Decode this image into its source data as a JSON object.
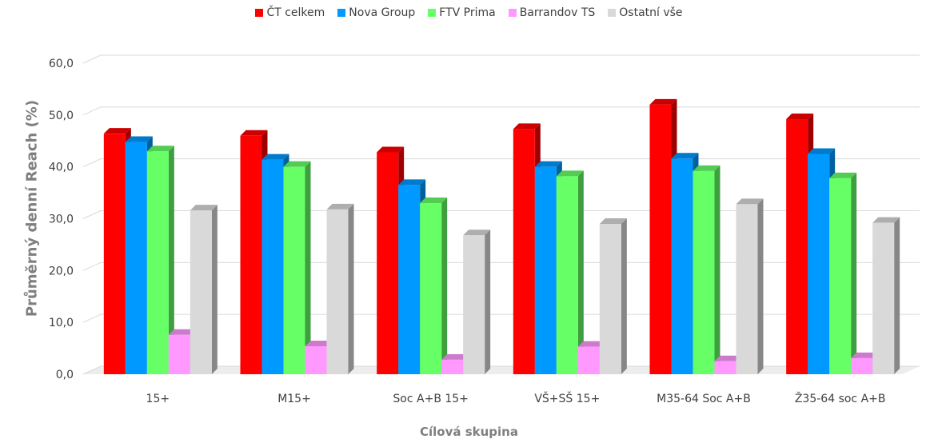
{
  "chart_data": {
    "type": "bar",
    "xlabel": "Cílová skupina",
    "ylabel": "Průměrný denní Reach (%)",
    "ylim": [
      0,
      60
    ],
    "yticks": [
      "0,0",
      "10,0",
      "20,0",
      "30,0",
      "40,0",
      "50,0",
      "60,0"
    ],
    "grid": true,
    "legend_position": "top",
    "categories": [
      "15+",
      "M15+",
      "Soc A+B 15+",
      "VŠ+SŠ 15+",
      "M35-64 Soc A+B",
      "Ž35-64 soc A+B"
    ],
    "series": [
      {
        "name": "ČT celkem",
        "color": "#ff0000",
        "values": [
          46.4,
          46.0,
          42.8,
          47.3,
          52.0,
          49.2
        ]
      },
      {
        "name": "Nova Group",
        "color": "#0099ff",
        "values": [
          44.8,
          41.4,
          36.5,
          40.0,
          41.6,
          42.5
        ]
      },
      {
        "name": "FTV Prima",
        "color": "#66ff66",
        "values": [
          43.0,
          40.0,
          33.0,
          38.2,
          39.2,
          37.8
        ]
      },
      {
        "name": "Barrandov TS",
        "color": "#ff99ff",
        "values": [
          7.6,
          5.4,
          2.8,
          5.3,
          2.5,
          3.1
        ]
      },
      {
        "name": "Ostatní vše",
        "color": "#d9d9d9",
        "values": [
          31.6,
          31.8,
          26.8,
          29.0,
          32.8,
          29.2
        ]
      }
    ]
  }
}
